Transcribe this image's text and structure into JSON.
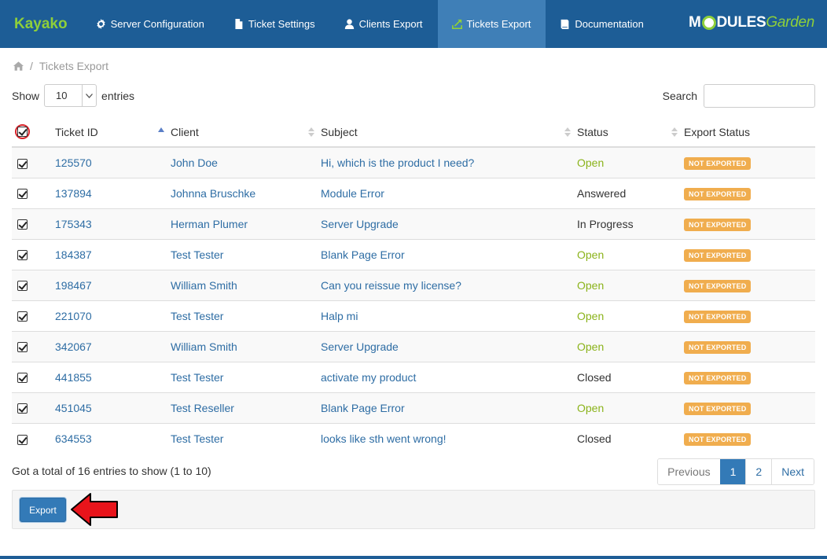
{
  "nav": {
    "brand": "Kayako",
    "items": [
      {
        "label": "Server Configuration",
        "icon": "gear-icon"
      },
      {
        "label": "Ticket Settings",
        "icon": "file-icon"
      },
      {
        "label": "Clients Export",
        "icon": "user-icon"
      },
      {
        "label": "Tickets Export",
        "icon": "export-icon",
        "active": true
      },
      {
        "label": "Documentation",
        "icon": "book-icon"
      }
    ],
    "logo_a": "M",
    "logo_b": "DULES",
    "logo_c": "Garden"
  },
  "breadcrumb": {
    "current": "Tickets Export"
  },
  "table_controls": {
    "show_label": "Show",
    "page_size": "10",
    "entries_label": "entries",
    "search_label": "Search",
    "search_value": ""
  },
  "table": {
    "headers": [
      "Ticket ID",
      "Client",
      "Subject",
      "Status",
      "Export Status"
    ],
    "rows": [
      {
        "id": "125570",
        "client": "John Doe",
        "subject": "Hi, which is the product I need?",
        "status": "Open",
        "export": "NOT EXPORTED"
      },
      {
        "id": "137894",
        "client": "Johnna Bruschke",
        "subject": "Module Error",
        "status": "Answered",
        "export": "NOT EXPORTED"
      },
      {
        "id": "175343",
        "client": "Herman Plumer",
        "subject": "Server Upgrade",
        "status": "In Progress",
        "export": "NOT EXPORTED"
      },
      {
        "id": "184387",
        "client": "Test Tester",
        "subject": "Blank Page Error",
        "status": "Open",
        "export": "NOT EXPORTED"
      },
      {
        "id": "198467",
        "client": "William Smith",
        "subject": "Can you reissue my license?",
        "status": "Open",
        "export": "NOT EXPORTED"
      },
      {
        "id": "221070",
        "client": "Test Tester",
        "subject": "Halp mi",
        "status": "Open",
        "export": "NOT EXPORTED"
      },
      {
        "id": "342067",
        "client": "William Smith",
        "subject": "Server Upgrade",
        "status": "Open",
        "export": "NOT EXPORTED"
      },
      {
        "id": "441855",
        "client": "Test Tester",
        "subject": "activate my product",
        "status": "Closed",
        "export": "NOT EXPORTED"
      },
      {
        "id": "451045",
        "client": "Test Reseller",
        "subject": "Blank Page Error",
        "status": "Open",
        "export": "NOT EXPORTED"
      },
      {
        "id": "634553",
        "client": "Test Tester",
        "subject": "looks like sth went wrong!",
        "status": "Closed",
        "export": "NOT EXPORTED"
      }
    ]
  },
  "summary": "Got a total of 16 entries to show (1 to 10)",
  "pagination": {
    "previous": "Previous",
    "pages": [
      "1",
      "2"
    ],
    "active": "1",
    "next": "Next"
  },
  "actions": {
    "export_label": "Export"
  },
  "colors": {
    "nav_bg": "#1d5d96",
    "accent_green": "#8ecf3a",
    "badge": "#f0ad4e",
    "primary": "#337ab7",
    "open_status": "#8bb31b"
  }
}
